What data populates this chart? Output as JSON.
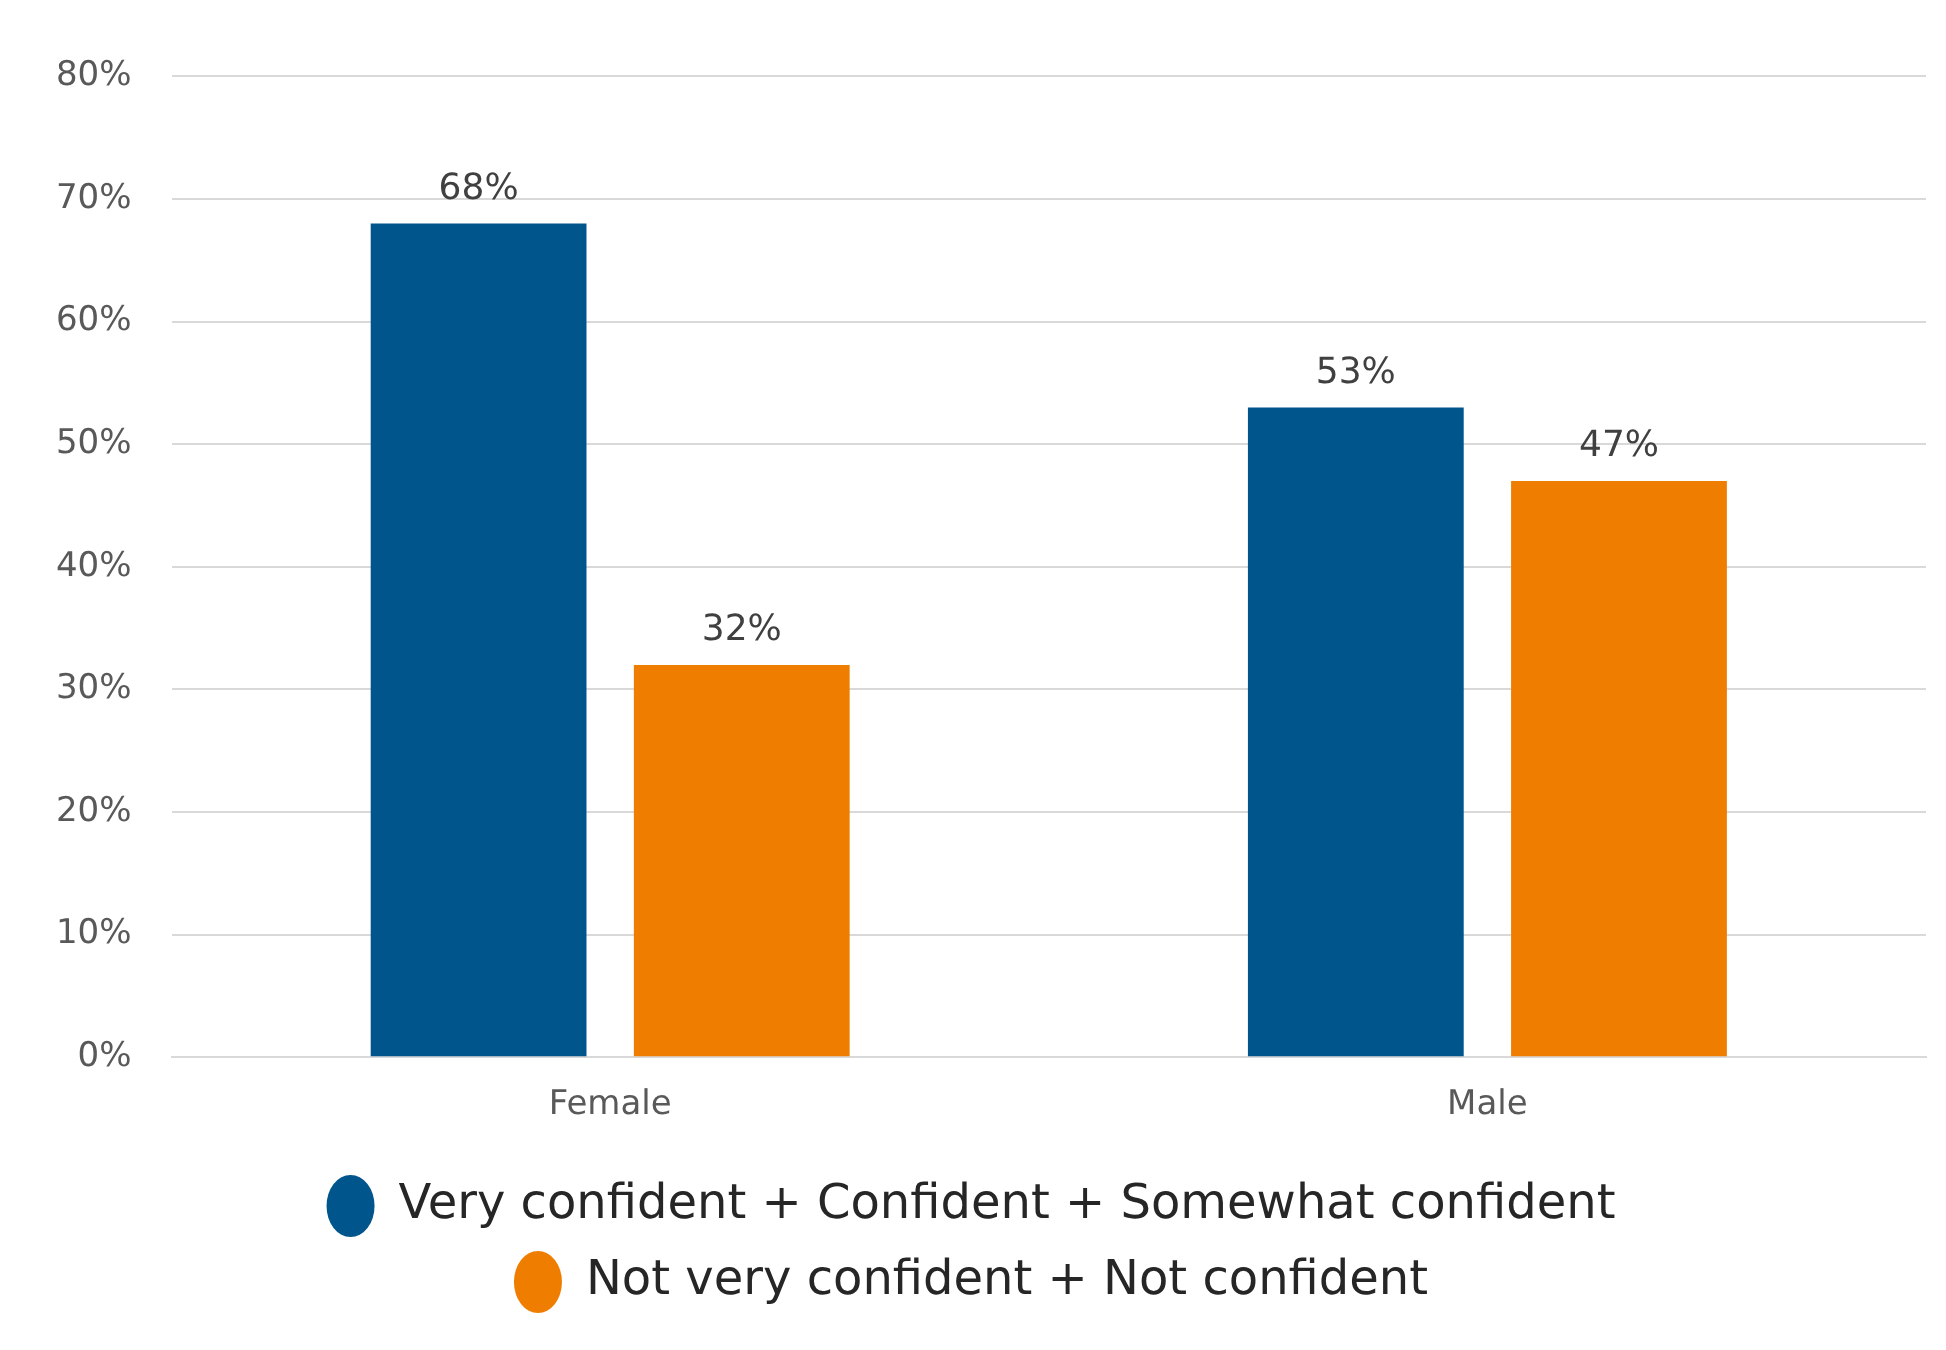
{
  "chart_data": {
    "type": "bar",
    "categories": [
      "Female",
      "Male"
    ],
    "series": [
      {
        "name": "Very confident + Confident + Somewhat confident",
        "color": "#00558c",
        "values": [
          68,
          53
        ],
        "value_labels": [
          "68%",
          "53%"
        ]
      },
      {
        "name": "Not very confident + Not confident",
        "color": "#ef7d00",
        "values": [
          32,
          47
        ],
        "value_labels": [
          "32%",
          "47%"
        ]
      }
    ],
    "ylim": [
      0,
      80
    ],
    "yticks": [
      {
        "value": 0,
        "label": "0%"
      },
      {
        "value": 10,
        "label": "10%"
      },
      {
        "value": 20,
        "label": "20%"
      },
      {
        "value": 30,
        "label": "30%"
      },
      {
        "value": 40,
        "label": "40%"
      },
      {
        "value": 50,
        "label": "50%"
      },
      {
        "value": 60,
        "label": "60%"
      },
      {
        "value": 70,
        "label": "70%"
      },
      {
        "value": 80,
        "label": "80%"
      }
    ],
    "grid": "y",
    "legend": "bottom",
    "marker": "circle"
  }
}
